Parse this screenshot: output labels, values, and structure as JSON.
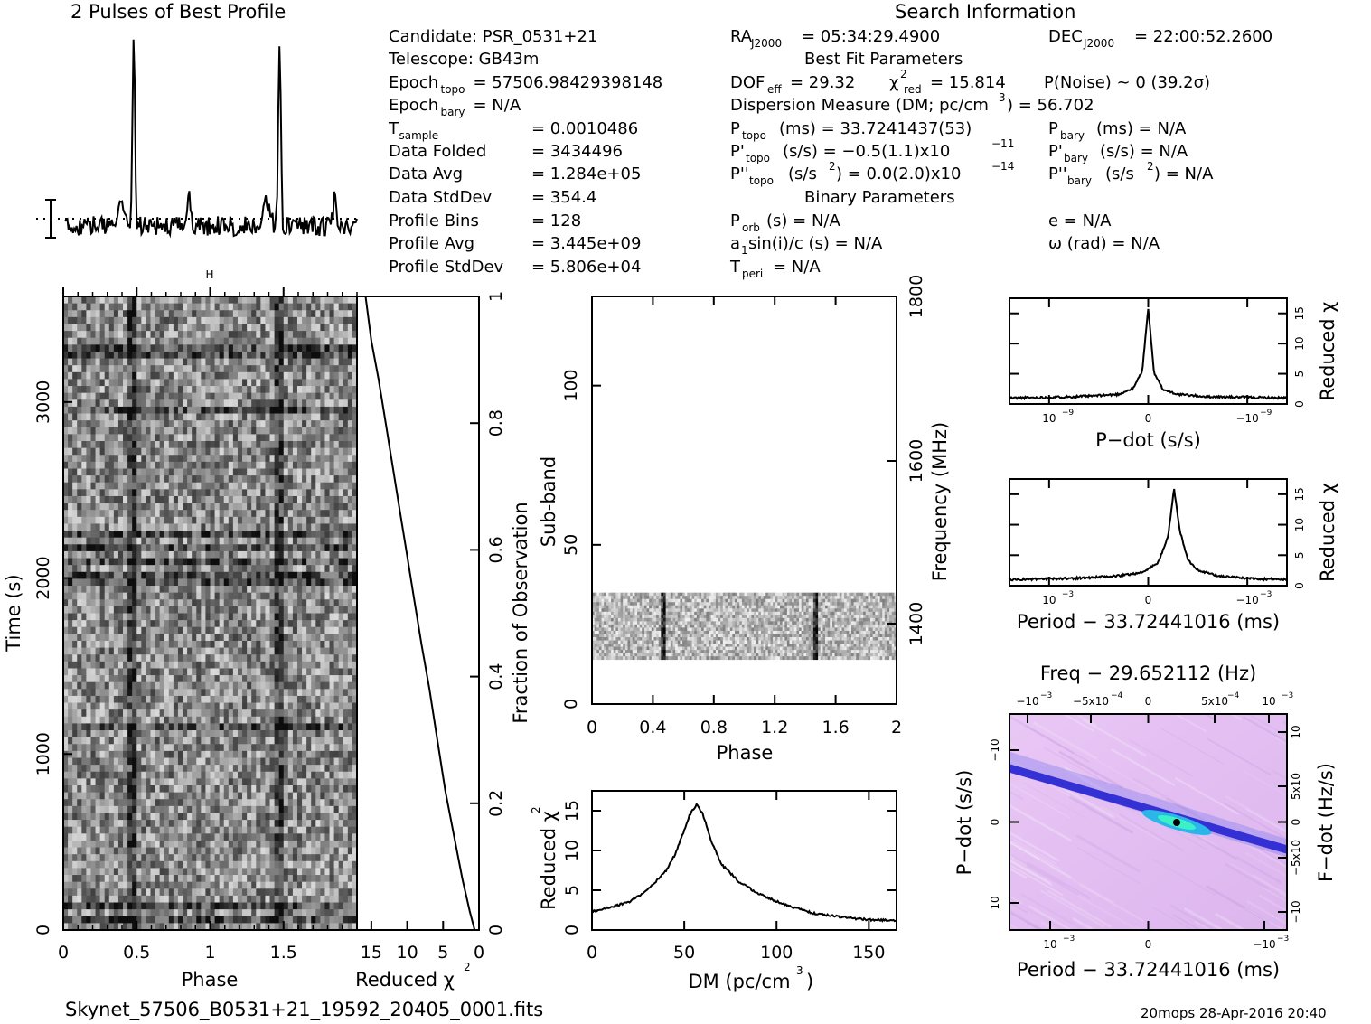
{
  "header": {
    "profile_title": "2 Pulses of Best Profile",
    "search_title": "Search Information",
    "best_fit_title": "Best Fit Parameters",
    "binary_title": "Binary Parameters",
    "filename": "Skynet_57506_B0531+21_19592_20405_0001.fits",
    "footer_stamp": "20mops 28-Apr-2016 20:40"
  },
  "info_left": [
    {
      "label": "Candidate:  PSR_0531+21",
      "sub": ""
    },
    {
      "label": "Telescope:  GB43m",
      "sub": ""
    },
    {
      "label": "Epoch",
      "sub": "topo",
      "value": "= 57506.98429398148"
    },
    {
      "label": "Epoch",
      "sub": "bary",
      "value": "= N/A"
    },
    {
      "label": "T",
      "sub": "sample",
      "value": "=   0.0010486"
    },
    {
      "label": "Data Folded",
      "sub": "",
      "value": "=   3434496"
    },
    {
      "label": "Data Avg",
      "sub": "",
      "value": "=   1.284e+05"
    },
    {
      "label": "Data StdDev",
      "sub": "",
      "value": "=   354.4"
    },
    {
      "label": "Profile Bins",
      "sub": "",
      "value": "=   128"
    },
    {
      "label": "Profile Avg",
      "sub": "",
      "value": "=   3.445e+09"
    },
    {
      "label": "Profile StdDev",
      "sub": "",
      "value": "=   5.806e+04"
    }
  ],
  "info_search": {
    "ra": "= 05:34:29.4900",
    "dec": "= 22:00:52.2600",
    "dof": "= 29.32",
    "chi2": "= 15.814",
    "pnoise": "P(Noise) ~ 0    (39.2σ)",
    "dm": "Dispersion Measure (DM; pc/cm",
    "dm_value": ") = 56.702",
    "ptopo": "(ms)  =   33.7241437(53)",
    "pbary": "(ms) = N/A",
    "pdot_topo": "(s/s) = −0.5(1.1)x10",
    "pdot_topo_exp": "−11",
    "pdot_bary": "(s/s) = N/A",
    "pddot_topo": "(s/s",
    "pddot_topo_val": ") = 0.0(2.0)x10",
    "pddot_topo_exp": "−14",
    "pddot_bary": "(s/s",
    "pddot_bary_val": ") = N/A",
    "porb": "(s) = N/A",
    "ecc": "e = N/A",
    "asini": "a",
    "asini_rest": "sin(i)/c (s) = N/A",
    "omega": "ω (rad) = N/A",
    "tperi": "= N/A"
  },
  "chart_data": [
    {
      "type": "line",
      "title": "2 Pulses of Best Profile",
      "x_range": [
        0,
        2
      ],
      "description_values": "two pulse peaks at phase ~0.47 and ~1.47",
      "peaks": [
        0.47,
        1.47
      ]
    },
    {
      "type": "heatmap",
      "name": "time-phase",
      "xlabel": "Phase",
      "ylabel": "Time (s)",
      "x_ticks": [
        "0",
        "0.5",
        "1",
        "1.5"
      ],
      "y_ticks": [
        "0",
        "1000",
        "2000",
        "3000"
      ],
      "xlim": [
        0,
        2
      ],
      "ylim": [
        0,
        3600
      ]
    },
    {
      "type": "line",
      "name": "reduced-chi2-vs-fraction",
      "xlabel": "Reduced χ",
      "ylabel": "Fraction of Observation",
      "x_ticks": [
        "15",
        "10",
        "5",
        "0"
      ],
      "y_ticks": [
        "0",
        "0.2",
        "0.4",
        "0.6",
        "0.8",
        "1"
      ],
      "xlim": [
        17,
        0
      ],
      "ylim": [
        0,
        1
      ],
      "x": [
        0.6,
        1.3,
        2.3,
        3.5,
        4.7,
        5.8,
        6.9,
        8.0,
        9.0,
        10.0,
        11.0,
        12.0,
        13.0,
        14.0,
        15.0,
        15.8
      ],
      "y": [
        0.0,
        0.03,
        0.08,
        0.15,
        0.22,
        0.3,
        0.38,
        0.45,
        0.52,
        0.59,
        0.66,
        0.73,
        0.8,
        0.87,
        0.93,
        1.0
      ]
    },
    {
      "type": "heatmap",
      "name": "subband-phase",
      "xlabel": "Phase",
      "ylabel": "Sub-band",
      "y2label": "Frequency (MHz)",
      "x_ticks": [
        "0",
        "0.4",
        "0.8",
        "1.2",
        "1.6",
        "2"
      ],
      "y_ticks": [
        "0",
        "50",
        "100"
      ],
      "y2_ticks": [
        "1400",
        "1600",
        "1800"
      ],
      "xlim": [
        0,
        2
      ],
      "ylim": [
        0,
        128
      ],
      "data_rows": [
        14,
        35
      ]
    },
    {
      "type": "line",
      "name": "dm-chi2",
      "xlabel": "DM (pc/cm",
      "ylabel": "Reduced χ",
      "x_ticks": [
        "0",
        "50",
        "100",
        "150"
      ],
      "y_ticks": [
        "0",
        "5",
        "10",
        "15"
      ],
      "xlim": [
        0,
        165
      ],
      "ylim": [
        0,
        17.5
      ],
      "x": [
        0,
        10,
        20,
        30,
        40,
        45,
        50,
        53,
        56.7,
        60,
        65,
        70,
        80,
        90,
        100,
        110,
        120,
        130,
        140,
        150,
        165
      ],
      "y": [
        2.3,
        2.9,
        3.5,
        5.0,
        7.4,
        9.5,
        12.5,
        14.5,
        15.8,
        14.6,
        11.0,
        8.3,
        6.0,
        4.6,
        3.6,
        2.8,
        2.1,
        1.8,
        1.5,
        1.3,
        1.2
      ]
    },
    {
      "type": "line",
      "name": "pdot-chi2",
      "xlabel": "P−dot (s/s)",
      "ylabel": "Reduced χ",
      "x_ticks": [
        "10",
        "0",
        "−10"
      ],
      "x_tick_exp": "−9",
      "y_ticks": [
        "0",
        "5",
        "10",
        "15"
      ],
      "xlim": [
        -1.4,
        1.4
      ],
      "ylim": [
        0,
        17.5
      ],
      "x": [
        -1.4,
        -1.0,
        -0.6,
        -0.3,
        -0.15,
        -0.06,
        0,
        0.06,
        0.15,
        0.3,
        0.6,
        1.0,
        1.4
      ],
      "y": [
        1.0,
        1.1,
        1.3,
        1.6,
        2.6,
        5.5,
        15.9,
        5.0,
        2.4,
        1.6,
        1.2,
        1.1,
        1.0
      ]
    },
    {
      "type": "line",
      "name": "period-chi2",
      "xlabel": "Period − 33.72441016 (ms)",
      "ylabel": "Reduced χ",
      "x_ticks": [
        "10",
        "0",
        "−10"
      ],
      "x_tick_exp": "−3",
      "y_ticks": [
        "0",
        "5",
        "10",
        "15"
      ],
      "xlim": [
        -1.4,
        1.4
      ],
      "ylim": [
        0,
        17.5
      ],
      "x": [
        -1.4,
        -1.0,
        -0.6,
        -0.3,
        -0.05,
        0.1,
        0.2,
        0.26,
        0.32,
        0.4,
        0.5,
        0.7,
        1.0,
        1.4
      ],
      "y": [
        1.0,
        1.1,
        1.3,
        1.6,
        2.2,
        3.8,
        8.0,
        15.9,
        9.0,
        4.2,
        2.6,
        1.6,
        1.2,
        1.0
      ]
    },
    {
      "type": "heatmap",
      "name": "period-pdot",
      "title": "Freq − 29.652112 (Hz)",
      "xlabel": "Period − 33.72441016 (ms)",
      "ylabel": "P−dot (s/s)",
      "y2label": "F−dot (Hz/s)",
      "x_ticks": [
        "10",
        "0",
        "−10"
      ],
      "x_tick_exp": "−3",
      "top_ticks": [
        "−10",
        "−5x10",
        "0",
        "5x10",
        "10"
      ],
      "top_tick_exps": [
        "−3",
        "−4",
        "",
        "−4",
        "−3"
      ],
      "y_ticks": [
        "−10",
        "0",
        "10"
      ],
      "y_tick_exp": "−9",
      "y2_ticks": [
        "10",
        "5x10",
        "0",
        "−5x10",
        "−10"
      ],
      "y2_tick_exps": [
        "−8",
        "−7",
        "",
        "−7",
        "−8"
      ]
    }
  ]
}
